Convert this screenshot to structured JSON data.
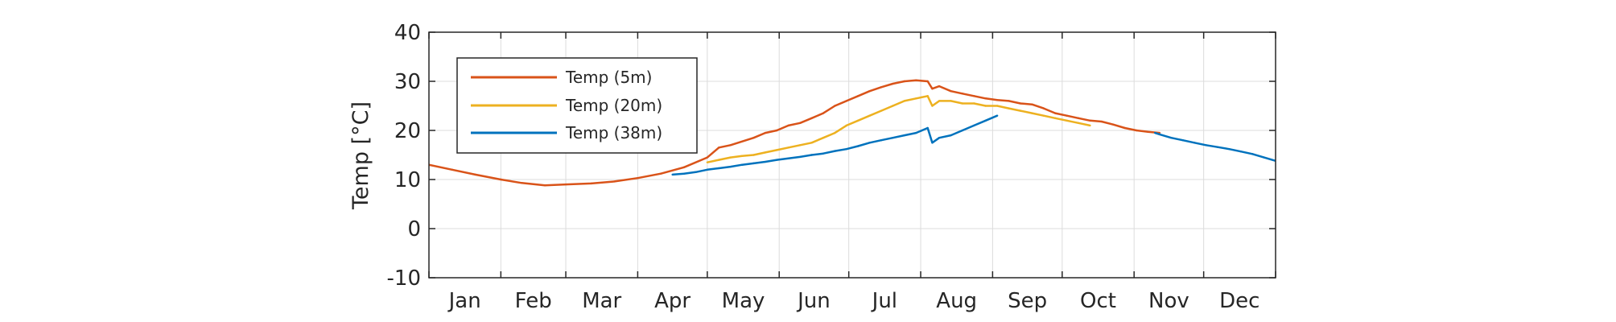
{
  "chart_data": {
    "type": "line",
    "title": "",
    "xlabel": "",
    "ylabel": "Temp [°C]",
    "ylim": [
      -10,
      40
    ],
    "yticks": [
      -10,
      0,
      10,
      20,
      30,
      40
    ],
    "xlim": [
      0,
      365
    ],
    "month_labels": [
      "Jan",
      "Feb",
      "Mar",
      "Apr",
      "May",
      "Jun",
      "Jul",
      "Aug",
      "Sep",
      "Oct",
      "Nov",
      "Dec"
    ],
    "grid": true,
    "legend_position": "top-left",
    "series": [
      {
        "name": "Temp (5m)",
        "color": "#D95319",
        "x": [
          0,
          10,
          20,
          31,
          40,
          50,
          59,
          70,
          80,
          90,
          100,
          110,
          120,
          125,
          130,
          140,
          145,
          150,
          155,
          160,
          165,
          170,
          175,
          180,
          185,
          190,
          195,
          200,
          205,
          210,
          215,
          217,
          220,
          225,
          230,
          235,
          240,
          245,
          250,
          255,
          260,
          265,
          270,
          275,
          280,
          285,
          290,
          295,
          300,
          305,
          310,
          315
        ],
        "y": [
          13.0,
          12.0,
          11.0,
          10.0,
          9.3,
          8.8,
          9.0,
          9.2,
          9.6,
          10.3,
          11.2,
          12.5,
          14.5,
          16.5,
          17.0,
          18.5,
          19.5,
          20.0,
          21.0,
          21.5,
          22.5,
          23.5,
          25.0,
          26.0,
          27.0,
          28.0,
          28.8,
          29.5,
          30.0,
          30.2,
          30.0,
          28.5,
          29.0,
          28.0,
          27.5,
          27.0,
          26.5,
          26.2,
          26.0,
          25.5,
          25.3,
          24.5,
          23.5,
          23.0,
          22.5,
          22.0,
          21.8,
          21.2,
          20.5,
          20.0,
          19.7,
          19.5
        ]
      },
      {
        "name": "Temp (20m)",
        "color": "#EDB120",
        "x": [
          120,
          125,
          130,
          135,
          140,
          145,
          150,
          155,
          160,
          165,
          170,
          175,
          180,
          185,
          190,
          195,
          200,
          205,
          210,
          215,
          217,
          220,
          225,
          230,
          235,
          240,
          245,
          250,
          255,
          260,
          265,
          270,
          275,
          280,
          285
        ],
        "y": [
          13.5,
          14.0,
          14.5,
          14.8,
          15.0,
          15.5,
          16.0,
          16.5,
          17.0,
          17.5,
          18.5,
          19.5,
          21.0,
          22.0,
          23.0,
          24.0,
          25.0,
          26.0,
          26.5,
          27.0,
          25.0,
          26.0,
          26.0,
          25.5,
          25.5,
          25.0,
          25.0,
          24.5,
          24.0,
          23.5,
          23.0,
          22.5,
          22.0,
          21.5,
          21.0
        ]
      },
      {
        "name": "Temp (38m)",
        "color": "#0072BD",
        "x": [
          105,
          110,
          115,
          120,
          125,
          130,
          135,
          140,
          145,
          150,
          155,
          160,
          165,
          170,
          175,
          180,
          185,
          190,
          195,
          200,
          205,
          210,
          215,
          217,
          220,
          225,
          230,
          235,
          240,
          245,
          313,
          315,
          320,
          325,
          330,
          335,
          340,
          345,
          350,
          355,
          360,
          365
        ],
        "y": [
          11.0,
          11.2,
          11.5,
          12.0,
          12.3,
          12.6,
          13.0,
          13.3,
          13.6,
          14.0,
          14.3,
          14.6,
          15.0,
          15.3,
          15.8,
          16.2,
          16.8,
          17.5,
          18.0,
          18.5,
          19.0,
          19.5,
          20.5,
          17.5,
          18.5,
          19.0,
          20.0,
          21.0,
          22.0,
          23.0,
          19.5,
          19.2,
          18.5,
          18.0,
          17.5,
          17.0,
          16.6,
          16.2,
          15.7,
          15.2,
          14.5,
          13.8
        ]
      }
    ]
  }
}
